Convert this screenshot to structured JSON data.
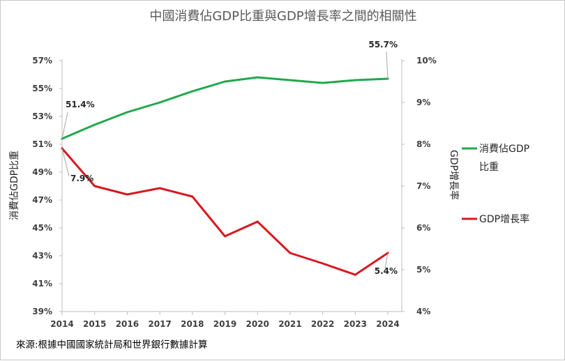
{
  "chart_data": {
    "type": "line",
    "title": "中國消費佔GDP比重與GDP增長率之間的相關性",
    "x": [
      "2014",
      "2015",
      "2016",
      "2017",
      "2018",
      "2019",
      "2020",
      "2021",
      "2022",
      "2023",
      "2024"
    ],
    "y_left": {
      "label": "消費佔GDP比重",
      "lim": [
        39,
        57
      ],
      "ticks": [
        39,
        41,
        43,
        45,
        47,
        49,
        51,
        53,
        55,
        57
      ],
      "tick_labels": [
        "39%",
        "41%",
        "43%",
        "45%",
        "47%",
        "49%",
        "51%",
        "53%",
        "55%",
        "57%"
      ]
    },
    "y_right": {
      "label": "GDP增長率",
      "lim": [
        4,
        10
      ],
      "ticks": [
        4,
        5,
        6,
        7,
        8,
        9,
        10
      ],
      "tick_labels": [
        "4%",
        "5%",
        "6%",
        "7%",
        "8%",
        "9%",
        "10%"
      ]
    },
    "series": [
      {
        "name": "消費佔GDP比重",
        "axis": "left",
        "color": "#21a84b",
        "values": [
          51.4,
          52.4,
          53.3,
          54.0,
          54.8,
          55.5,
          55.8,
          55.6,
          55.4,
          55.6,
          55.7
        ]
      },
      {
        "name": "GDP增長率",
        "axis": "right",
        "color": "#d7181f",
        "values": [
          7.9,
          7.0,
          6.8,
          6.95,
          6.75,
          5.8,
          6.15,
          5.4,
          5.15,
          4.88,
          5.4
        ]
      }
    ],
    "data_labels": [
      {
        "series": 0,
        "index": 0,
        "text": "51.4%"
      },
      {
        "series": 1,
        "index": 0,
        "text": "7.9%"
      },
      {
        "series": 0,
        "index": 10,
        "text": "55.7%"
      },
      {
        "series": 1,
        "index": 10,
        "text": "5.4%"
      }
    ],
    "legend": {
      "placement": "right",
      "entries": [
        {
          "series": 0,
          "lines": [
            "消費佔GDP",
            "比重"
          ]
        },
        {
          "series": 1,
          "lines": [
            "GDP增長率"
          ]
        }
      ]
    },
    "grid": false
  },
  "source_note": "來源:根據中國國家統計局和世界銀行數據計算"
}
